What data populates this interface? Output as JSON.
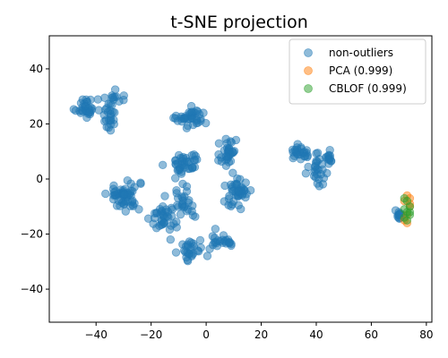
{
  "chart_data": {
    "type": "scatter",
    "title": "t-SNE projection",
    "xlabel": "",
    "ylabel": "",
    "xlim": [
      -57,
      82
    ],
    "ylim": [
      -52,
      52
    ],
    "x_ticks": [
      -40,
      -20,
      0,
      20,
      40,
      60,
      80
    ],
    "y_ticks": [
      -40,
      -20,
      0,
      20,
      40
    ],
    "grid": false,
    "legend_position": "top-right",
    "series": [
      {
        "name": "non-outliers",
        "color": "#1f77b4",
        "clusters": [
          {
            "center": [
              -44,
              26
            ],
            "spread": [
              3.5,
              3.5
            ],
            "n": 30
          },
          {
            "center": [
              -36,
              23
            ],
            "spread": [
              2.5,
              5.5
            ],
            "n": 22
          },
          {
            "center": [
              -33,
              29
            ],
            "spread": [
              3.0,
              2.5
            ],
            "n": 14
          },
          {
            "center": [
              -30,
              -6
            ],
            "spread": [
              5.5,
              5.0
            ],
            "n": 55
          },
          {
            "center": [
              -15,
              -14
            ],
            "spread": [
              4.5,
              5.5
            ],
            "n": 38
          },
          {
            "center": [
              -8,
              6
            ],
            "spread": [
              5.0,
              4.0
            ],
            "n": 40
          },
          {
            "center": [
              -5,
              22
            ],
            "spread": [
              5.0,
              3.0
            ],
            "n": 40
          },
          {
            "center": [
              -8,
              -8
            ],
            "spread": [
              3.5,
              6.0
            ],
            "n": 26
          },
          {
            "center": [
              -5,
              -26
            ],
            "spread": [
              4.5,
              3.5
            ],
            "n": 28
          },
          {
            "center": [
              8,
              10
            ],
            "spread": [
              2.5,
              7.0
            ],
            "n": 34
          },
          {
            "center": [
              11,
              -5
            ],
            "spread": [
              5.0,
              5.0
            ],
            "n": 45
          },
          {
            "center": [
              6,
              -22
            ],
            "spread": [
              4.5,
              2.5
            ],
            "n": 22
          },
          {
            "center": [
              35,
              10
            ],
            "spread": [
              4.0,
              2.5
            ],
            "n": 22
          },
          {
            "center": [
              40,
              2
            ],
            "spread": [
              4.0,
              6.0
            ],
            "n": 28
          },
          {
            "center": [
              45,
              8
            ],
            "spread": [
              3.0,
              2.5
            ],
            "n": 14
          },
          {
            "center": [
              70,
              -13
            ],
            "spread": [
              1.5,
              1.3
            ],
            "n": 14
          }
        ]
      },
      {
        "name": "PCA (0.999)",
        "color": "#ff7f0e",
        "points": [
          [
            73,
            -6
          ],
          [
            74,
            -7
          ],
          [
            72,
            -8
          ],
          [
            74,
            -9
          ],
          [
            73,
            -13
          ],
          [
            72,
            -15
          ],
          [
            73,
            -16
          ],
          [
            74,
            -10
          ]
        ]
      },
      {
        "name": "CBLOF (0.999)",
        "color": "#2ca02c",
        "points": [
          [
            72,
            -7
          ],
          [
            73,
            -8
          ],
          [
            74,
            -10
          ],
          [
            73,
            -12
          ],
          [
            72,
            -14
          ],
          [
            74,
            -13
          ],
          [
            73,
            -15
          ],
          [
            72,
            -11
          ],
          [
            74,
            -12
          ]
        ]
      }
    ]
  }
}
